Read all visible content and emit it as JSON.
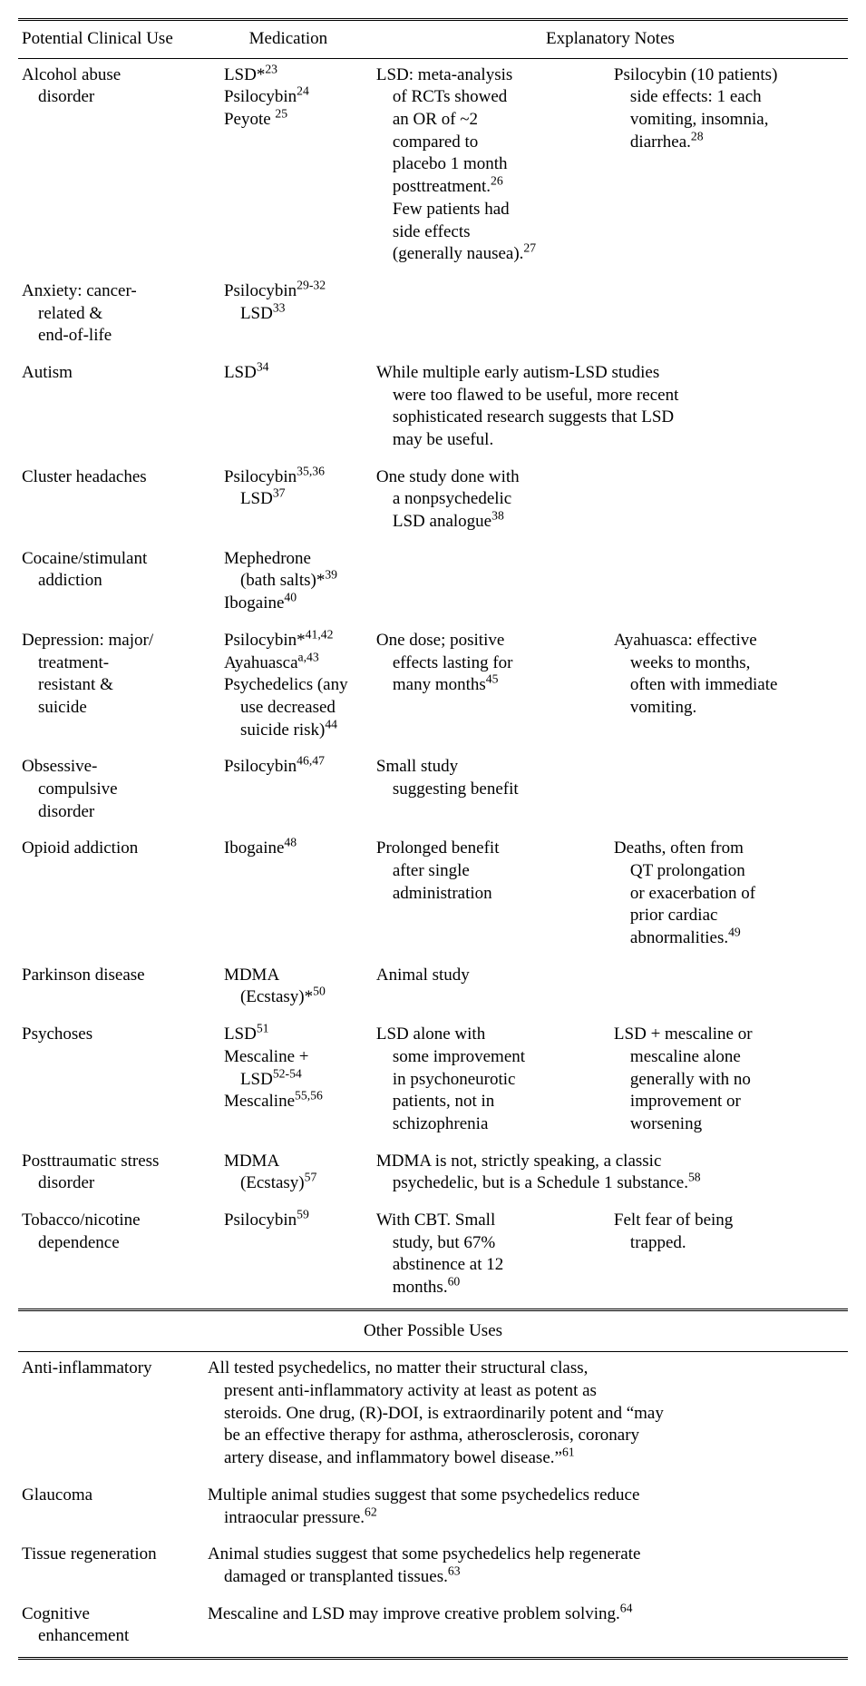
{
  "headers": {
    "col1": "Potential Clinical Use",
    "col2": "Medication",
    "col3": "Explanatory Notes"
  },
  "rows": [
    {
      "use": [
        "Alcohol abuse",
        "disorder"
      ],
      "meds": [
        {
          "t": "LSD*",
          "s": "23"
        },
        {
          "t": "Psilocybin",
          "s": "24"
        },
        {
          "t": "Peyote ",
          "s": "25"
        }
      ],
      "note1": [
        "LSD: meta-analysis",
        "of RCTs showed",
        "an OR of ~2",
        "compared to",
        "placebo 1 month",
        "posttreatment.<sup>26</sup>",
        "Few patients had",
        "side effects",
        "(generally nausea).<sup>27</sup>"
      ],
      "note2": [
        "Psilocybin (10 patients)",
        "side effects: 1 each",
        "vomiting, insomnia,",
        "diarrhea.<sup>28</sup>"
      ]
    },
    {
      "use": [
        "Anxiety: cancer-",
        "related &",
        "end-of-life"
      ],
      "meds": [
        {
          "t": "Psilocybin",
          "s": "29-32"
        },
        {
          "pre": "  ",
          "t": "LSD",
          "s": "33"
        }
      ],
      "note1": [],
      "note2": []
    },
    {
      "use": [
        "Autism"
      ],
      "meds": [
        {
          "t": "LSD",
          "s": "34"
        }
      ],
      "wide": [
        "While multiple early autism-LSD studies",
        "were too flawed to be useful, more recent",
        "sophisticated research suggests that LSD",
        "may be useful."
      ]
    },
    {
      "use": [
        "Cluster headaches"
      ],
      "meds": [
        {
          "t": "Psilocybin",
          "s": "35,36"
        },
        {
          "pre": "  ",
          "t": "LSD",
          "s": "37"
        }
      ],
      "note1": [
        "One study done with",
        "a nonpsychedelic",
        "LSD analogue<sup>38</sup>"
      ],
      "note2": []
    },
    {
      "use": [
        "Cocaine/stimulant",
        "addiction"
      ],
      "meds": [
        {
          "t": "Mephedrone"
        },
        {
          "pre": "  ",
          "t": "(bath salts)*",
          "s": "39"
        },
        {
          "t": "Ibogaine",
          "s": "40"
        }
      ],
      "note1": [],
      "note2": []
    },
    {
      "use": [
        "Depression: major/",
        "treatment-",
        "resistant &",
        "suicide"
      ],
      "meds": [
        {
          "t": "Psilocybin*",
          "s": "41,42"
        },
        {
          "t": "Ayahuasca",
          "s": "a,43"
        },
        {
          "t": "Psychedelics (any"
        },
        {
          "pre": "  ",
          "t": "use decreased"
        },
        {
          "pre": "  ",
          "t": "suicide risk)",
          "s": "44"
        }
      ],
      "note1": [
        "One dose; positive",
        "effects lasting for",
        "many months<sup>45</sup>"
      ],
      "note2": [
        "Ayahuasca: effective",
        "weeks to months,",
        "often with immediate",
        "vomiting."
      ]
    },
    {
      "use": [
        "Obsessive-",
        "compulsive",
        "disorder"
      ],
      "meds": [
        {
          "t": "Psilocybin",
          "s": "46,47"
        }
      ],
      "note1": [
        "Small study",
        "suggesting benefit"
      ],
      "note2": []
    },
    {
      "use": [
        "Opioid addiction"
      ],
      "meds": [
        {
          "t": "Ibogaine",
          "s": "48"
        }
      ],
      "note1": [
        "Prolonged benefit",
        "after single",
        "administration"
      ],
      "note2": [
        "Deaths, often from",
        "QT prolongation",
        "or exacerbation of",
        "prior cardiac",
        "abnormalities.<sup>49</sup>"
      ]
    },
    {
      "use": [
        "Parkinson disease"
      ],
      "meds": [
        {
          "t": "MDMA"
        },
        {
          "pre": "  ",
          "t": "(Ecstasy)*",
          "s": "50"
        }
      ],
      "note1": [
        "Animal study"
      ],
      "note2": []
    },
    {
      "use": [
        "Psychoses"
      ],
      "meds": [
        {
          "t": "LSD",
          "s": "51"
        },
        {
          "t": "Mescaline +"
        },
        {
          "pre": "  ",
          "t": "LSD",
          "s": "52-54"
        },
        {
          "t": "Mescaline",
          "s": "55,56"
        }
      ],
      "note1": [
        "LSD alone with",
        "some improvement",
        "in psychoneurotic",
        "patients, not in",
        "schizophrenia"
      ],
      "note2": [
        "LSD + mescaline or",
        "mescaline alone",
        "generally with no",
        "improvement or",
        "worsening"
      ]
    },
    {
      "use": [
        "Posttraumatic stress",
        "disorder"
      ],
      "meds": [
        {
          "t": "MDMA"
        },
        {
          "pre": "  ",
          "t": "(Ecstasy)",
          "s": "57"
        }
      ],
      "wide": [
        "MDMA is not, strictly speaking, a classic",
        "psychedelic, but is a Schedule 1 substance.<sup>58</sup>"
      ]
    },
    {
      "use": [
        "Tobacco/nicotine",
        "dependence"
      ],
      "meds": [
        {
          "t": "Psilocybin",
          "s": "59"
        }
      ],
      "note1": [
        "With CBT. Small",
        "study, but 67%",
        "abstinence at 12",
        "months.<sup>60</sup>"
      ],
      "note2": [
        "Felt fear of being",
        "trapped."
      ]
    }
  ],
  "section2_title": "Other Possible Uses",
  "rows2": [
    {
      "use": [
        "Anti-inflammatory"
      ],
      "text": [
        "All tested psychedelics, no matter their structural class,",
        "present anti-inflammatory activity at least as potent as",
        "steroids. One drug, (R)-DOI, is extraordinarily potent and “may",
        "be an effective therapy for asthma, atherosclerosis, coronary",
        "artery disease, and inflammatory bowel disease.”<sup>61</sup>"
      ]
    },
    {
      "use": [
        "Glaucoma"
      ],
      "text": [
        "Multiple animal studies suggest that some psychedelics reduce",
        "intraocular pressure.<sup>62</sup>"
      ]
    },
    {
      "use": [
        "Tissue regeneration"
      ],
      "text": [
        "Animal studies suggest that some psychedelics help regenerate",
        "damaged or transplanted tissues.<sup>63</sup>"
      ]
    },
    {
      "use": [
        "Cognitive",
        "enhancement"
      ],
      "text": [
        "Mescaline and LSD may improve creative problem solving.<sup>64</sup>"
      ]
    }
  ]
}
